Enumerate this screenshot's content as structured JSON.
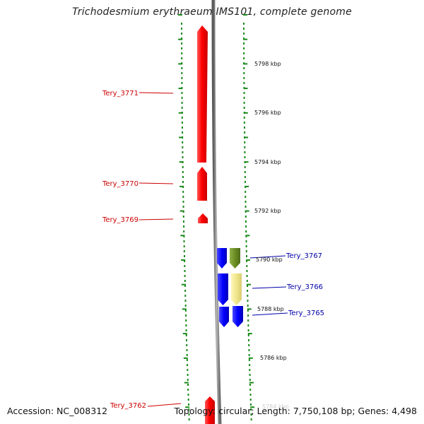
{
  "title": "Trichodesmium erythraeum IMS101, complete genome",
  "footer": {
    "accession": "Accession: NC_008312",
    "summary": "Topology: circular; Length: 7,750,108 bp; Genes: 4,498"
  },
  "scale_labels": [
    "5798 kbp",
    "5796 kbp",
    "5794 kbp",
    "5792 kbp",
    "5790 kbp",
    "5788 kbp",
    "5786 kbp",
    "5784 kbp"
  ],
  "genes": [
    {
      "name": "Tery_3771",
      "strand": "forward",
      "color": "#ff0000"
    },
    {
      "name": "Tery_3770",
      "strand": "forward",
      "color": "#ff0000"
    },
    {
      "name": "Tery_3769",
      "strand": "forward",
      "color": "#ff0000"
    },
    {
      "name": "Tery_3767",
      "strand": "reverse",
      "color": "#0000ff"
    },
    {
      "name": "Tery_3766",
      "strand": "reverse",
      "color": "#0000ff"
    },
    {
      "name": "Tery_3765",
      "strand": "reverse",
      "color": "#0000ff"
    },
    {
      "name": "Tery_3762",
      "strand": "forward",
      "color": "#ff0000"
    }
  ],
  "colors": {
    "forward_gene": "#ff0000",
    "reverse_gene": "#0000ff",
    "olive_feature": "#6b8e23",
    "khaki_feature": "#f0e68c",
    "backbone": "#8a8a8a",
    "tick_marks": "#1a8a1a",
    "forward_label": "#cc0000",
    "reverse_label": "#0000aa"
  }
}
